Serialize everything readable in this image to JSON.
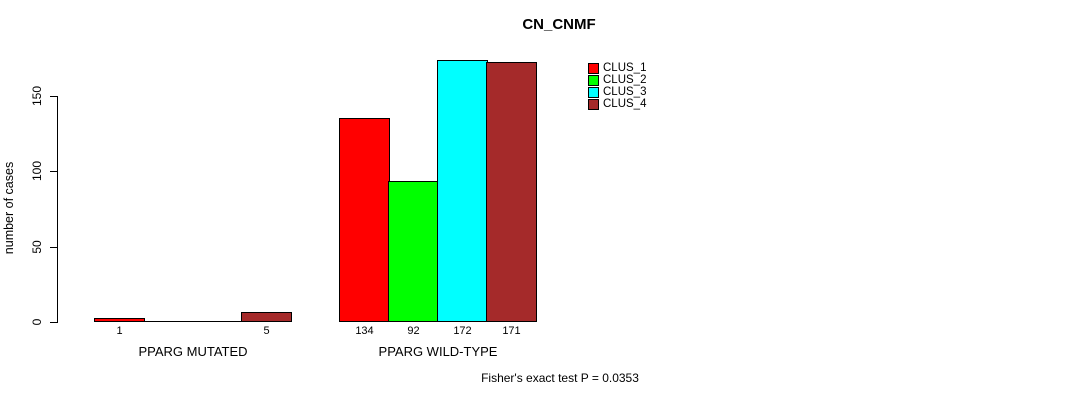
{
  "title": "CN_CNMF",
  "footer": {
    "stat_test": "Fisher's exact test P = 0.0353"
  },
  "colors": {
    "background": "#ffffff",
    "axis": "#000000",
    "bar_border": "#000000"
  },
  "chart_data": {
    "type": "bar",
    "title": "CN_CNMF",
    "xlabel": "",
    "ylabel": "number of cases",
    "ylim": [
      0,
      172
    ],
    "y_ticks": [
      0,
      50,
      100,
      150
    ],
    "grid": false,
    "legend_position": "top-right",
    "categories": [
      "PPARG MUTATED",
      "PPARG WILD-TYPE"
    ],
    "series": [
      {
        "name": "CLUS_1",
        "color": "#ff0000",
        "values": [
          1,
          134
        ]
      },
      {
        "name": "CLUS_2",
        "color": "#00ff00",
        "values": [
          0,
          92
        ]
      },
      {
        "name": "CLUS_3",
        "color": "#00ffff",
        "values": [
          0,
          172
        ]
      },
      {
        "name": "CLUS_4",
        "color": "#a52a2a",
        "values": [
          5,
          171
        ]
      }
    ],
    "bar_labels": [
      [
        "1",
        "",
        "",
        "5"
      ],
      [
        "134",
        "92",
        "172",
        "171"
      ]
    ]
  }
}
